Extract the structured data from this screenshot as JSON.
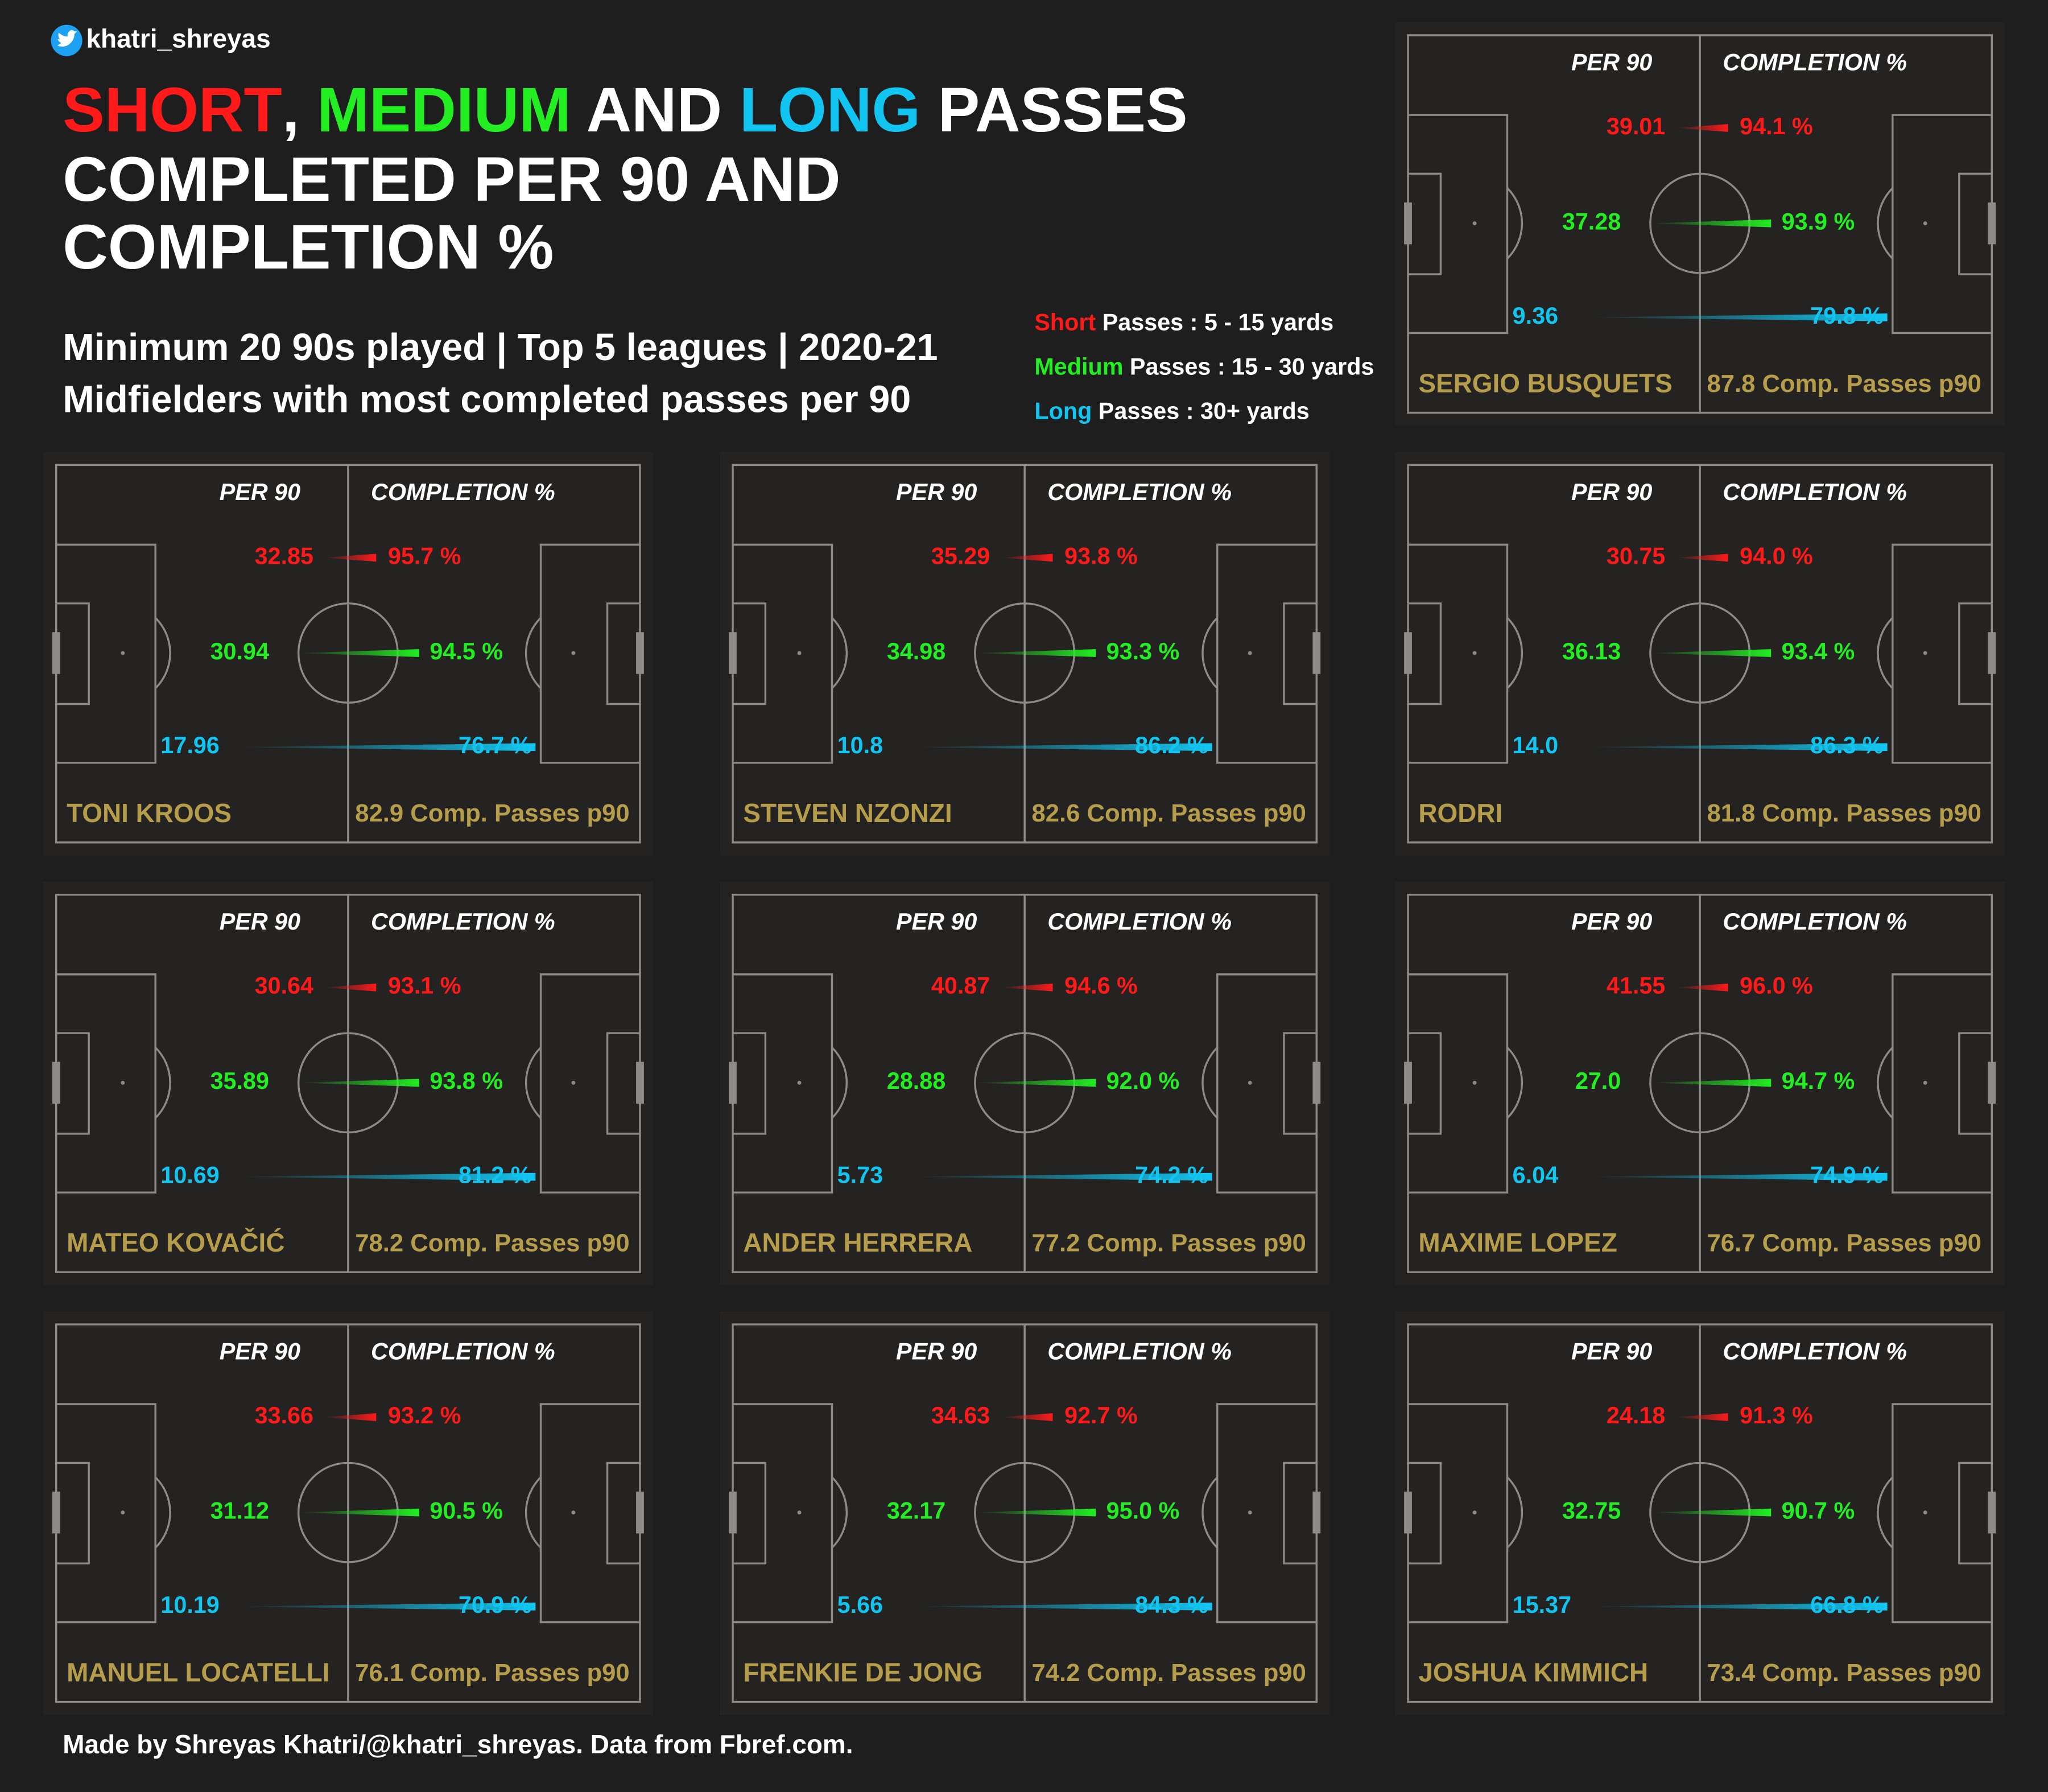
{
  "header": {
    "handle": "khatri_shreyas",
    "title": {
      "short": "SHORT",
      "sep1": ", ",
      "medium": "MEDIUM",
      "sep2": " AND ",
      "long": "LONG",
      "rest1": " PASSES",
      "line2": "COMPLETED PER 90 AND",
      "line3": "COMPLETION %"
    },
    "subtitle": [
      "Minimum 20 90s played | Top 5 leagues | 2020-21",
      "Midfielders with most completed passes per 90"
    ]
  },
  "legend": [
    {
      "word": "Short",
      "text": " Passes : 5 - 15 yards",
      "color": "#ff1a1a"
    },
    {
      "word": "Medium",
      "text": " Passes : 15 - 30 yards",
      "color": "#22ee22"
    },
    {
      "word": "Long",
      "text": " Passes : 30+ yards",
      "color": "#12c5f0"
    }
  ],
  "column_headers": {
    "per90": "PER 90",
    "completion": "COMPLETION %"
  },
  "panels": [
    {
      "name": "SERGIO BUSQUETS",
      "total": "87.8 Comp. Passes p90",
      "rows": [
        [
          "39.01",
          "94.1 %"
        ],
        [
          "37.28",
          "93.9 %"
        ],
        [
          "9.36",
          "79.8 %"
        ]
      ]
    },
    {
      "name": "TONI KROOS",
      "total": "82.9 Comp. Passes p90",
      "rows": [
        [
          "32.85",
          "95.7 %"
        ],
        [
          "30.94",
          "94.5 %"
        ],
        [
          "17.96",
          "76.7 %"
        ]
      ]
    },
    {
      "name": "STEVEN NZONZI",
      "total": "82.6 Comp. Passes p90",
      "rows": [
        [
          "35.29",
          "93.8 %"
        ],
        [
          "34.98",
          "93.3 %"
        ],
        [
          "10.8",
          "86.2 %"
        ]
      ]
    },
    {
      "name": "RODRI",
      "total": "81.8 Comp. Passes p90",
      "rows": [
        [
          "30.75",
          "94.0 %"
        ],
        [
          "36.13",
          "93.4 %"
        ],
        [
          "14.0",
          "86.3 %"
        ]
      ]
    },
    {
      "name": "MATEO KOVAČIĆ",
      "total": "78.2 Comp. Passes p90",
      "rows": [
        [
          "30.64",
          "93.1 %"
        ],
        [
          "35.89",
          "93.8 %"
        ],
        [
          "10.69",
          "81.2 %"
        ]
      ]
    },
    {
      "name": "ANDER HERRERA",
      "total": "77.2 Comp. Passes p90",
      "rows": [
        [
          "40.87",
          "94.6 %"
        ],
        [
          "28.88",
          "92.0 %"
        ],
        [
          "5.73",
          "74.2 %"
        ]
      ]
    },
    {
      "name": "MAXIME LOPEZ",
      "total": "76.7 Comp. Passes p90",
      "rows": [
        [
          "41.55",
          "96.0 %"
        ],
        [
          "27.0",
          "94.7 %"
        ],
        [
          "6.04",
          "74.9 %"
        ]
      ]
    },
    {
      "name": "MANUEL LOCATELLI",
      "total": "76.1 Comp. Passes p90",
      "rows": [
        [
          "33.66",
          "93.2 %"
        ],
        [
          "31.12",
          "90.5 %"
        ],
        [
          "10.19",
          "70.9 %"
        ]
      ]
    },
    {
      "name": "FRENKIE DE JONG",
      "total": "74.2 Comp. Passes p90",
      "rows": [
        [
          "34.63",
          "92.7 %"
        ],
        [
          "32.17",
          "95.0 %"
        ],
        [
          "5.66",
          "84.3 %"
        ]
      ]
    },
    {
      "name": "JOSHUA KIMMICH",
      "total": "73.4 Comp. Passes p90",
      "rows": [
        [
          "24.18",
          "91.3 %"
        ],
        [
          "32.75",
          "90.7 %"
        ],
        [
          "15.37",
          "66.8 %"
        ]
      ]
    }
  ],
  "footer": "Made by Shreyas Khatri/@khatri_shreyas. Data from Fbref.com."
}
